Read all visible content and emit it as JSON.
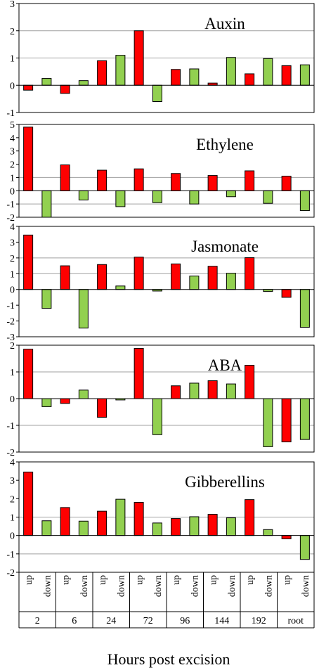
{
  "chart_data": {
    "type": "bar",
    "xlabel": "Hours post excision",
    "categories": [
      "2",
      "6",
      "24",
      "72",
      "96",
      "144",
      "192",
      "root"
    ],
    "sub_categories": [
      "up",
      "down"
    ],
    "colors": {
      "up": "#ff0000",
      "down": "#92d050"
    },
    "panels": [
      {
        "title": "Auxin",
        "ylim": [
          -1,
          3
        ],
        "yticks": [
          -1,
          0,
          1,
          2,
          3
        ],
        "grid": [
          1,
          2
        ],
        "series": [
          {
            "values": [
              -0.18,
              -0.3,
              0.9,
              2.0,
              0.58,
              0.08,
              0.42,
              0.72
            ]
          },
          {
            "values": [
              0.25,
              0.17,
              1.1,
              -0.6,
              0.6,
              1.02,
              0.98,
              0.75
            ]
          }
        ]
      },
      {
        "title": "Ethylene",
        "ylim": [
          -2,
          5
        ],
        "yticks": [
          -2,
          -1,
          0,
          1,
          2,
          3,
          4,
          5
        ],
        "grid": [
          -1,
          1
        ],
        "series": [
          {
            "values": [
              4.8,
              1.95,
              1.55,
              1.65,
              1.3,
              1.15,
              1.5,
              1.1
            ]
          },
          {
            "values": [
              -2.0,
              -0.7,
              -1.2,
              -0.9,
              -1.0,
              -0.45,
              -0.95,
              -1.5
            ]
          }
        ]
      },
      {
        "title": "Jasmonate",
        "ylim": [
          -3,
          4
        ],
        "yticks": [
          -3,
          -2,
          -1,
          0,
          1,
          2,
          3,
          4
        ],
        "grid": [
          1,
          2
        ],
        "series": [
          {
            "values": [
              3.45,
              1.5,
              1.58,
              2.05,
              1.62,
              1.47,
              2.02,
              -0.5
            ]
          },
          {
            "values": [
              -1.2,
              -2.45,
              0.22,
              -0.1,
              0.85,
              1.03,
              -0.13,
              -2.4
            ]
          }
        ]
      },
      {
        "title": "ABA",
        "ylim": [
          -2,
          2
        ],
        "yticks": [
          -2,
          -1,
          0,
          1,
          2
        ],
        "grid": [
          -1,
          1
        ],
        "series": [
          {
            "values": [
              1.85,
              -0.18,
              -0.7,
              1.88,
              0.48,
              0.67,
              1.25,
              -1.62
            ]
          },
          {
            "values": [
              -0.3,
              0.32,
              -0.05,
              -1.35,
              0.58,
              0.55,
              -1.8,
              -1.53
            ]
          }
        ]
      },
      {
        "title": "Gibberellins",
        "ylim": [
          -2,
          4
        ],
        "yticks": [
          -2,
          -1,
          0,
          1,
          2,
          3,
          4
        ],
        "grid": [
          -1,
          1
        ],
        "series": [
          {
            "values": [
              3.45,
              1.52,
              1.32,
              1.8,
              0.92,
              1.15,
              1.95,
              -0.18
            ]
          },
          {
            "values": [
              0.8,
              0.78,
              1.97,
              0.68,
              1.02,
              0.96,
              0.32,
              -1.3
            ]
          }
        ]
      }
    ]
  }
}
